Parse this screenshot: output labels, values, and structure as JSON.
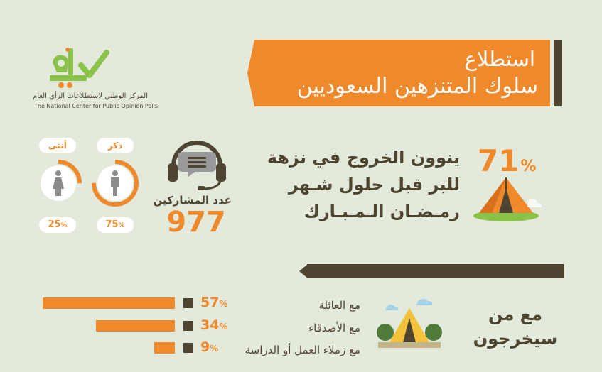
{
  "logo": {
    "mark": "رأي",
    "name_ar": "المركز الوطني لاستطلاعات الرأي العام",
    "name_en": "The National Center for Public Opinion Polls",
    "colors": {
      "orange": "#ee8a2c",
      "green": "#8bc34a",
      "check": "#8bc34a"
    }
  },
  "title": {
    "line1": "استطلاع",
    "line2": "سلوك المتنزهين السعوديين"
  },
  "headline_stat": {
    "value": "71",
    "unit": "%",
    "lines": [
      "ينوون الخروج في نزهة",
      "للبر قبل حلول شـهر",
      "رمـضـان الـمـبـارك"
    ]
  },
  "participants": {
    "label": "عدد المشاركين",
    "count": "977",
    "icon": "headset-chat-icon"
  },
  "gender": [
    {
      "label": "ذكر",
      "percent": "75",
      "unit": "%",
      "fraction": 0.75,
      "icon": "male-icon"
    },
    {
      "label": "أنثى",
      "percent": "25",
      "unit": "%",
      "fraction": 0.25,
      "icon": "female-icon"
    }
  ],
  "companions": {
    "title_line1": "مع من",
    "title_line2": "سيخرجون",
    "icon": "tent-campsite-icon",
    "items": [
      {
        "label": "مع العائلة",
        "percent": "57",
        "unit": "%"
      },
      {
        "label": "مع الأصدقاء",
        "percent": "34",
        "unit": "%"
      },
      {
        "label": "مع زملاء العمل أو الدراسة",
        "percent": "9",
        "unit": "%"
      }
    ]
  },
  "colors": {
    "orange": "#ee8a2c",
    "dark": "#4d4532",
    "background": "#e3eadc",
    "grey": "#8c8c8c"
  }
}
